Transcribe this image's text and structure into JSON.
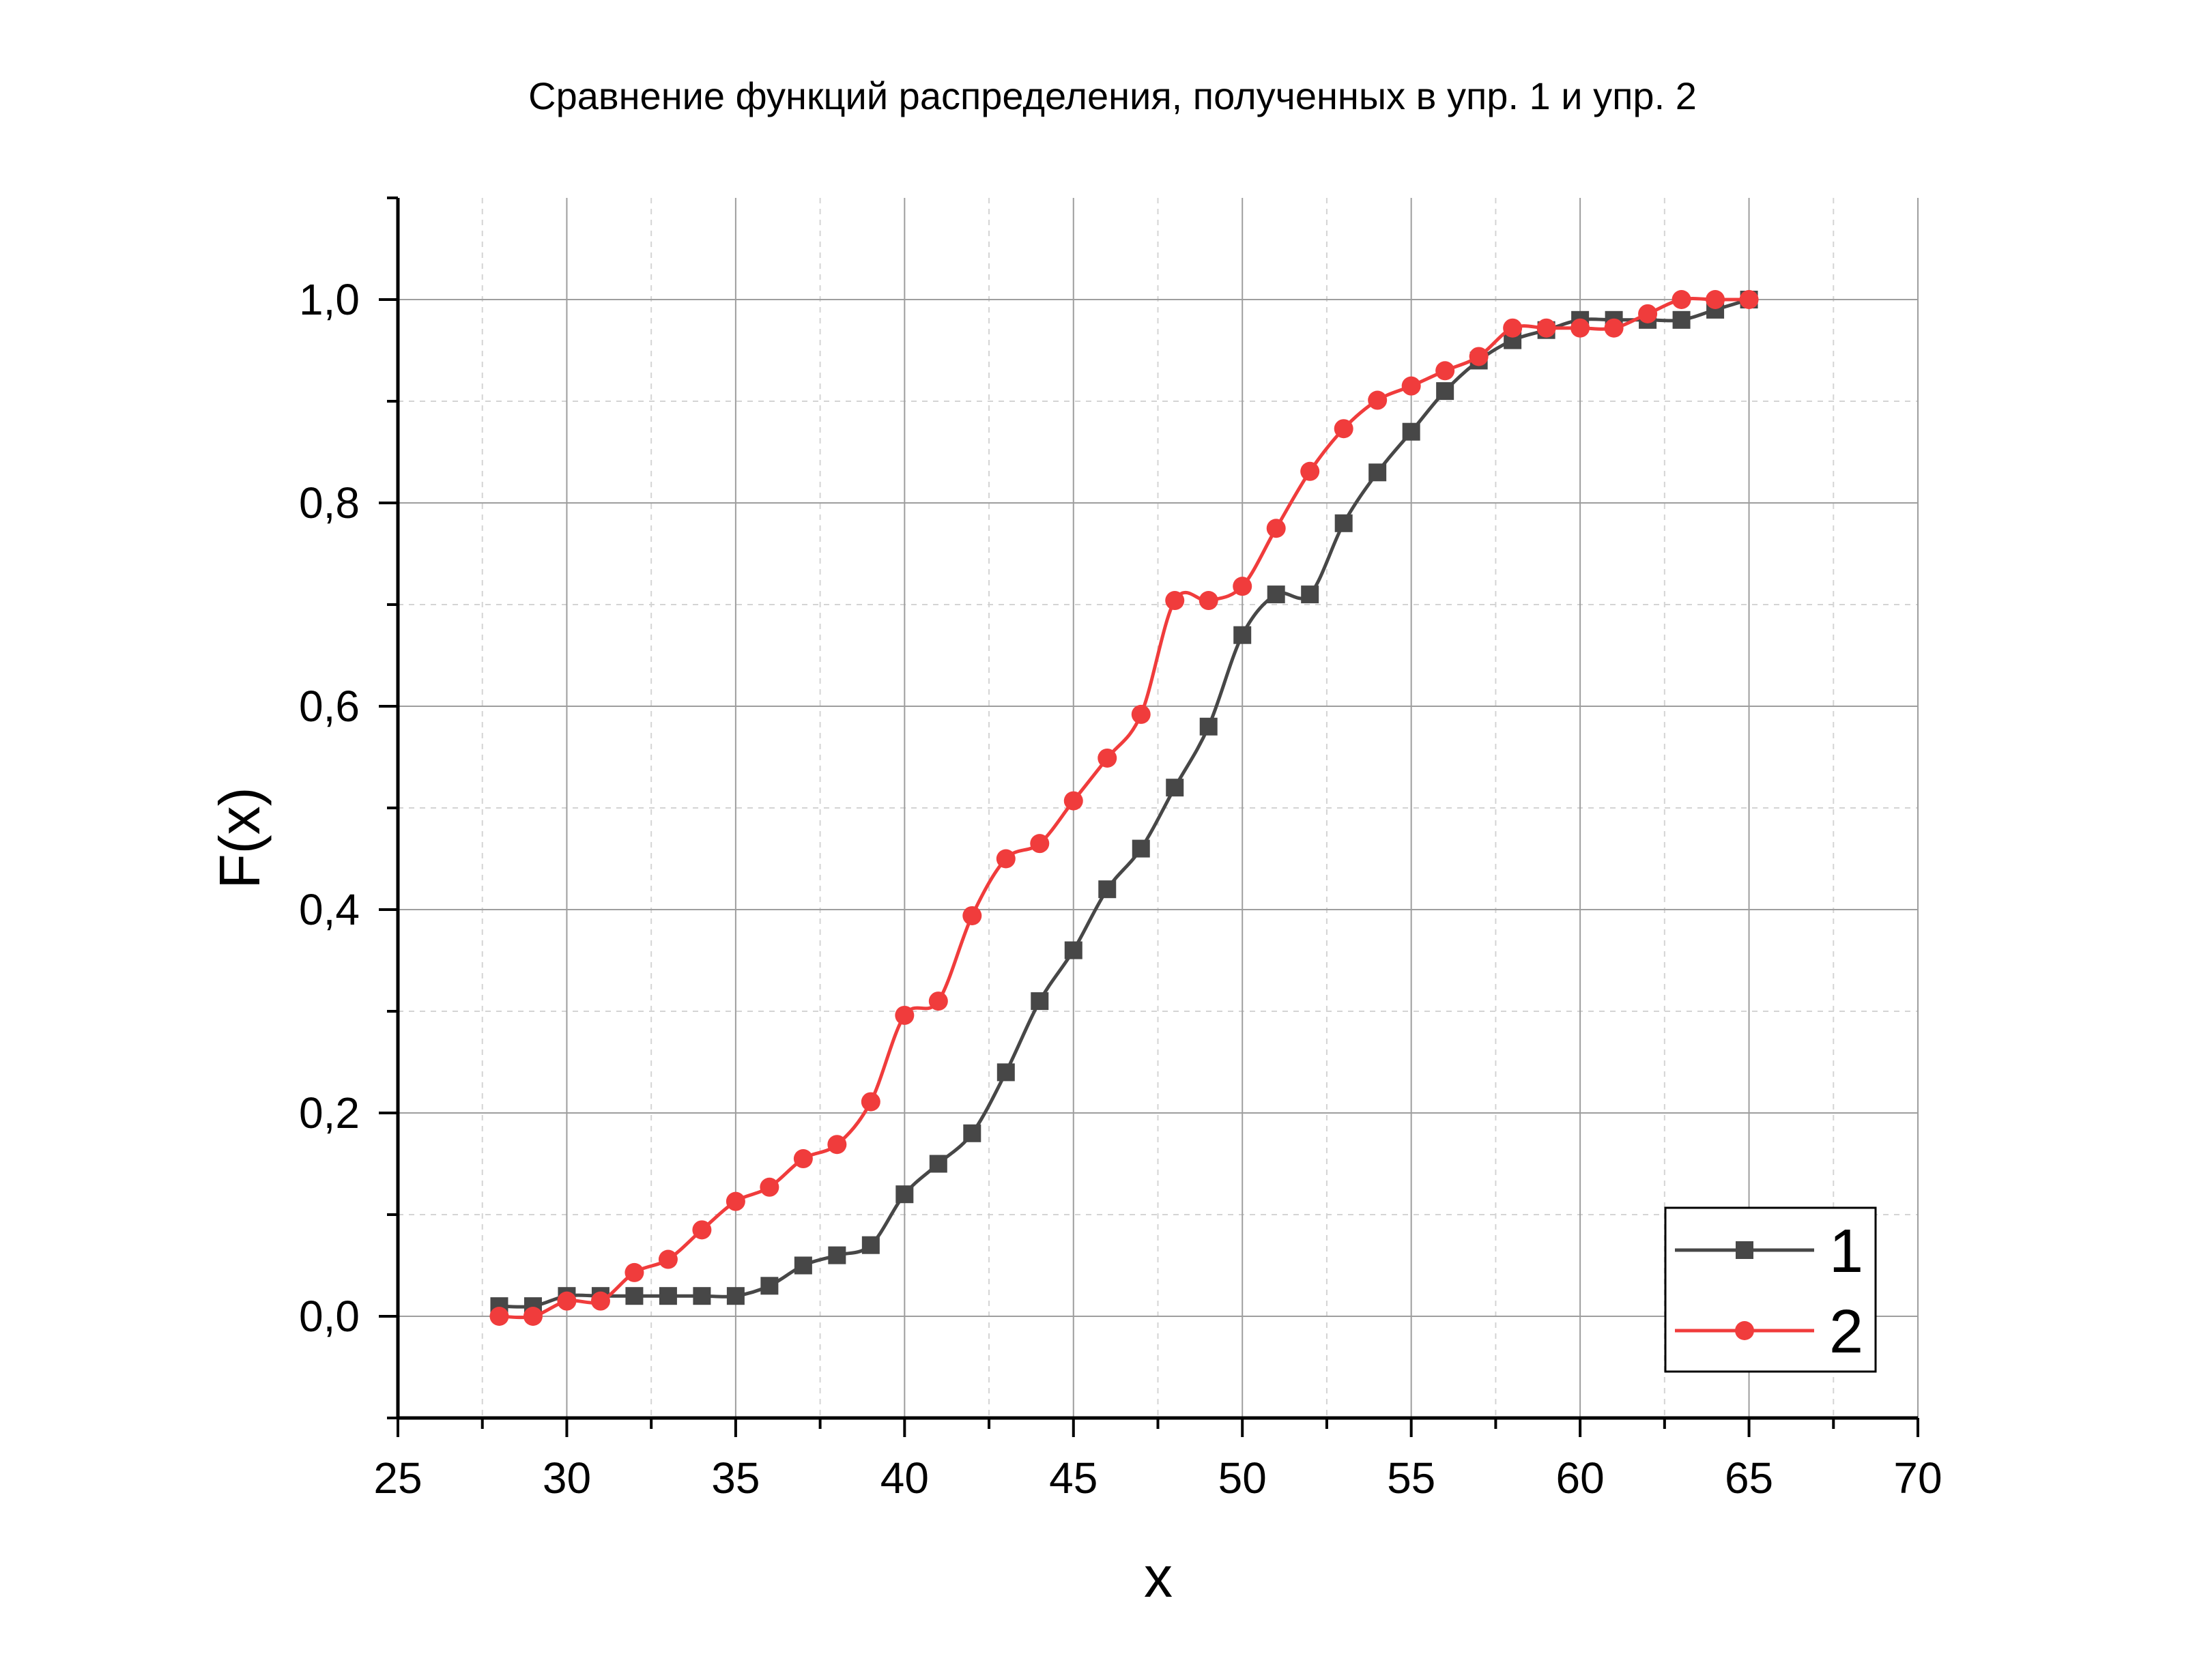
{
  "chart_data": {
    "type": "line",
    "title": "Сравнение функций распределения, полученных в упр. 1 и упр. 2",
    "xlabel": "x",
    "ylabel": "F(x)",
    "xlim": [
      25,
      70
    ],
    "ylim": [
      -0.1,
      1.1
    ],
    "x_ticks": [
      25,
      30,
      35,
      40,
      45,
      50,
      55,
      60,
      65,
      70
    ],
    "x_tick_labels": [
      "25",
      "30",
      "35",
      "40",
      "45",
      "50",
      "55",
      "60",
      "65",
      "70"
    ],
    "y_ticks": [
      0,
      0.2,
      0.4,
      0.6,
      0.8,
      1.0
    ],
    "y_tick_labels": [
      "0,0",
      "0,2",
      "0,4",
      "0,6",
      "0,8",
      "1,0"
    ],
    "grid": true,
    "legend_position": "bottom-right",
    "series": [
      {
        "name": "1",
        "color": "#474747",
        "marker": "square",
        "x": [
          28,
          29,
          30,
          31,
          32,
          33,
          34,
          35,
          36,
          37,
          38,
          39,
          40,
          41,
          42,
          43,
          44,
          45,
          46,
          47,
          48,
          49,
          50,
          51,
          52,
          53,
          54,
          55,
          56,
          57,
          58,
          59,
          60,
          61,
          62,
          63,
          64,
          65
        ],
        "y": [
          0.01,
          0.01,
          0.02,
          0.02,
          0.02,
          0.02,
          0.02,
          0.02,
          0.03,
          0.05,
          0.06,
          0.07,
          0.12,
          0.15,
          0.18,
          0.24,
          0.31,
          0.36,
          0.42,
          0.46,
          0.52,
          0.58,
          0.67,
          0.71,
          0.71,
          0.78,
          0.83,
          0.87,
          0.91,
          0.94,
          0.96,
          0.97,
          0.98,
          0.98,
          0.98,
          0.98,
          0.99,
          1.0
        ]
      },
      {
        "name": "2",
        "color": "#f03c3c",
        "marker": "circle",
        "x": [
          28,
          29,
          30,
          31,
          32,
          33,
          34,
          35,
          36,
          37,
          38,
          39,
          40,
          41,
          42,
          43,
          44,
          45,
          46,
          47,
          48,
          49,
          50,
          51,
          52,
          53,
          54,
          55,
          56,
          57,
          58,
          59,
          60,
          61,
          62,
          63,
          64,
          65
        ],
        "y": [
          0.0,
          0.0,
          0.015,
          0.015,
          0.043,
          0.056,
          0.085,
          0.113,
          0.127,
          0.155,
          0.169,
          0.211,
          0.296,
          0.31,
          0.394,
          0.45,
          0.465,
          0.507,
          0.549,
          0.592,
          0.704,
          0.704,
          0.718,
          0.775,
          0.831,
          0.873,
          0.901,
          0.915,
          0.93,
          0.944,
          0.972,
          0.972,
          0.972,
          0.972,
          0.986,
          1.0,
          1.0,
          1.0
        ]
      }
    ]
  }
}
